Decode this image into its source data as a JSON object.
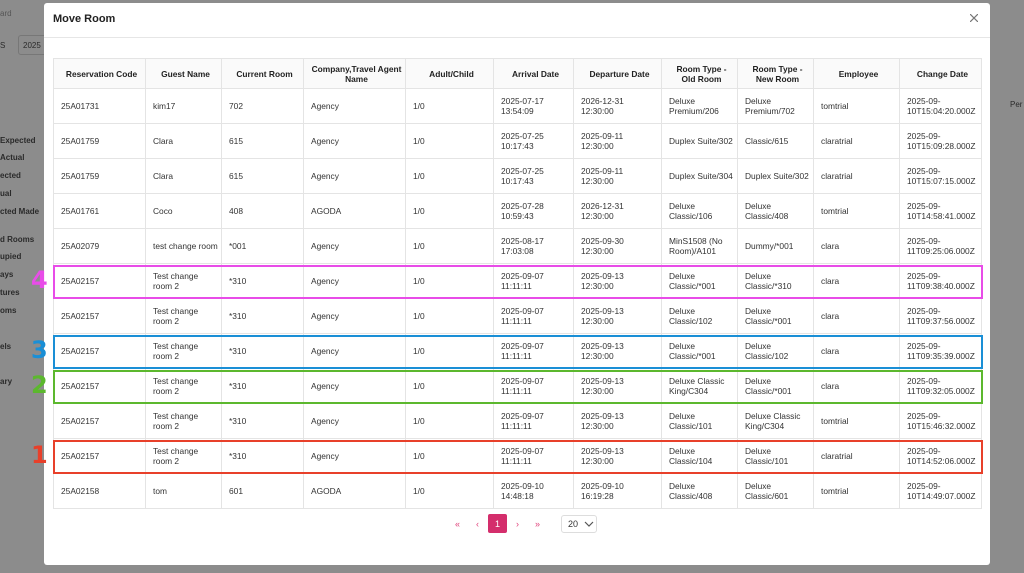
{
  "background": {
    "breadcrumb": "ard",
    "filter_label": "S",
    "filter_value": "2025",
    "right_label": "Per",
    "sidebar_labels": [
      "Expected",
      "Actual",
      "ected",
      "ual",
      "cted Made",
      "d Rooms",
      "upied",
      "ays",
      "tures",
      "oms",
      "els",
      "ary"
    ]
  },
  "modal": {
    "title": "Move Room",
    "table": {
      "headers": [
        "Reservation Code",
        "Guest Name",
        "Current Room",
        "Company,Travel Agent Name",
        "Adult/Child",
        "Arrival Date",
        "Departure Date",
        "Room Type - Old Room",
        "Room Type - New Room",
        "Employee",
        "Change Date"
      ],
      "rows": [
        {
          "cells": [
            "25A01731",
            "kim17",
            "702",
            "Agency",
            "1/0",
            "2025-07-17 13:54:09",
            "2026-12-31 12:30:00",
            "Deluxe Premium/206",
            "Deluxe Premium/702",
            "tomtrial",
            "2025-09-10T15:04:20.000Z"
          ]
        },
        {
          "cells": [
            "25A01759",
            "Clara",
            "615",
            "Agency",
            "1/0",
            "2025-07-25 10:17:43",
            "2025-09-11 12:30:00",
            "Duplex Suite/302",
            "Classic/615",
            "claratrial",
            "2025-09-10T15:09:28.000Z"
          ]
        },
        {
          "cells": [
            "25A01759",
            "Clara",
            "615",
            "Agency",
            "1/0",
            "2025-07-25 10:17:43",
            "2025-09-11 12:30:00",
            "Duplex Suite/304",
            "Duplex Suite/302",
            "claratrial",
            "2025-09-10T15:07:15.000Z"
          ]
        },
        {
          "cells": [
            "25A01761",
            "Coco",
            "408",
            "AGODA",
            "1/0",
            "2025-07-28 10:59:43",
            "2026-12-31 12:30:00",
            "Deluxe Classic/106",
            "Deluxe Classic/408",
            "tomtrial",
            "2025-09-10T14:58:41.000Z"
          ]
        },
        {
          "cells": [
            "25A02079",
            "test change room",
            "*001",
            "Agency",
            "1/0",
            "2025-08-17 17:03:08",
            "2025-09-30 12:30:00",
            "MinS1508 (No Room)/A101",
            "Dummy/*001",
            "clara",
            "2025-09-11T09:25:06.000Z"
          ]
        },
        {
          "cells": [
            "25A02157",
            "Test change room 2",
            "*310",
            "Agency",
            "1/0",
            "2025-09-07 11:11:11",
            "2025-09-13 12:30:00",
            "Deluxe Classic/*001",
            "Deluxe Classic/*310",
            "clara",
            "2025-09-11T09:38:40.000Z"
          ],
          "highlight": {
            "label": "4",
            "color": "#e84ce8"
          }
        },
        {
          "cells": [
            "25A02157",
            "Test change room 2",
            "*310",
            "Agency",
            "1/0",
            "2025-09-07 11:11:11",
            "2025-09-13 12:30:00",
            "Deluxe Classic/102",
            "Deluxe Classic/*001",
            "clara",
            "2025-09-11T09:37:56.000Z"
          ]
        },
        {
          "cells": [
            "25A02157",
            "Test change room 2",
            "*310",
            "Agency",
            "1/0",
            "2025-09-07 11:11:11",
            "2025-09-13 12:30:00",
            "Deluxe Classic/*001",
            "Deluxe Classic/102",
            "clara",
            "2025-09-11T09:35:39.000Z"
          ],
          "highlight": {
            "label": "3",
            "color": "#1a8fd6"
          }
        },
        {
          "cells": [
            "25A02157",
            "Test change room 2",
            "*310",
            "Agency",
            "1/0",
            "2025-09-07 11:11:11",
            "2025-09-13 12:30:00",
            "Deluxe Classic King/C304",
            "Deluxe Classic/*001",
            "clara",
            "2025-09-11T09:32:05.000Z"
          ],
          "highlight": {
            "label": "2",
            "color": "#5cb82e"
          }
        },
        {
          "cells": [
            "25A02157",
            "Test change room 2",
            "*310",
            "Agency",
            "1/0",
            "2025-09-07 11:11:11",
            "2025-09-13 12:30:00",
            "Deluxe Classic/101",
            "Deluxe Classic King/C304",
            "tomtrial",
            "2025-09-10T15:46:32.000Z"
          ]
        },
        {
          "cells": [
            "25A02157",
            "Test change room 2",
            "*310",
            "Agency",
            "1/0",
            "2025-09-07 11:11:11",
            "2025-09-13 12:30:00",
            "Deluxe Classic/104",
            "Deluxe Classic/101",
            "claratrial",
            "2025-09-10T14:52:06.000Z"
          ],
          "highlight": {
            "label": "1",
            "color": "#e8402a"
          }
        },
        {
          "cells": [
            "25A02158",
            "tom",
            "601",
            "AGODA",
            "1/0",
            "2025-09-10 14:48:18",
            "2025-09-10 16:19:28",
            "Deluxe Classic/408",
            "Deluxe Classic/601",
            "tomtrial",
            "2025-09-10T14:49:07.000Z"
          ]
        }
      ]
    },
    "pagination": {
      "first": "«",
      "prev": "‹",
      "current": "1",
      "next": "›",
      "last": "»",
      "page_size": "20"
    }
  }
}
